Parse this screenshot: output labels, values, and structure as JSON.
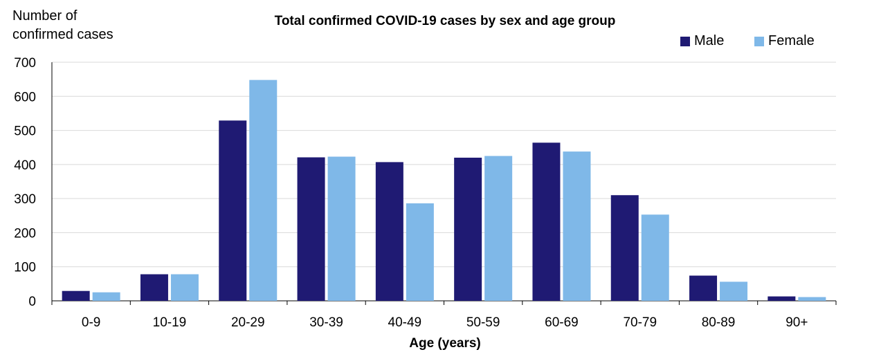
{
  "chart_data": {
    "type": "bar",
    "title": "Total confirmed COVID-19 cases by sex and age group",
    "xlabel": "Age (years)",
    "ylabel": "Number of confirmed cases",
    "categories": [
      "0-9",
      "10-19",
      "20-29",
      "30-39",
      "40-49",
      "50-59",
      "60-69",
      "70-79",
      "80-89",
      "90+"
    ],
    "series": [
      {
        "name": "Male",
        "color": "#1f1a73",
        "values": [
          29,
          78,
          529,
          421,
          407,
          420,
          464,
          310,
          74,
          13
        ]
      },
      {
        "name": "Female",
        "color": "#7fb8e8",
        "values": [
          25,
          78,
          648,
          423,
          286,
          425,
          438,
          253,
          56,
          11
        ]
      }
    ],
    "ylim": [
      0,
      700
    ],
    "yticks": [
      0,
      100,
      200,
      300,
      400,
      500,
      600,
      700
    ],
    "grid": true,
    "legend_position": "top-right"
  }
}
